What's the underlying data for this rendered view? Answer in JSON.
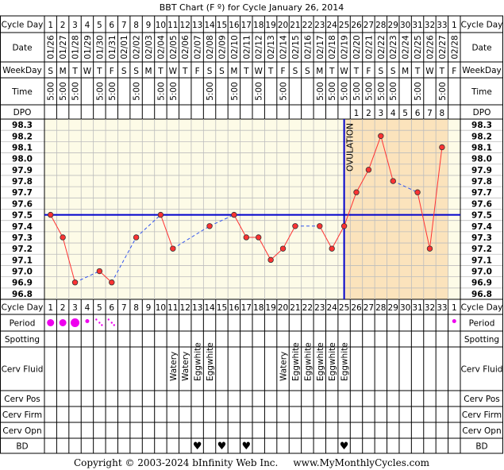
{
  "title": "BBT Chart (F º) for Cycle January 26, 2014",
  "copyright": "Copyright © 2003-2024 bInfinity Web Inc.     www.MyMonthlyCycles.com",
  "row_labels": {
    "cycle_day": "Cycle Day",
    "date": "Date",
    "weekday": "WeekDay",
    "time": "Time",
    "dpo": "DPO",
    "period": "Period",
    "spotting": "Spotting",
    "cerv_fluid": "Cerv Fluid",
    "cerv_pos": "Cerv Pos",
    "cerv_firm": "Cerv Firm",
    "cerv_opn": "Cerv Opn",
    "bd": "BD"
  },
  "ovulation_label": "OVULATION",
  "cycle_days": [
    "1",
    "2",
    "3",
    "4",
    "5",
    "6",
    "7",
    "8",
    "9",
    "10",
    "11",
    "12",
    "13",
    "14",
    "15",
    "16",
    "17",
    "18",
    "19",
    "20",
    "21",
    "22",
    "23",
    "24",
    "25",
    "26",
    "27",
    "28",
    "29",
    "30",
    "31",
    "32",
    "33",
    "1"
  ],
  "dates": [
    "01/26",
    "01/27",
    "01/28",
    "01/29",
    "01/30",
    "01/31",
    "02/01",
    "02/02",
    "02/03",
    "02/04",
    "02/05",
    "02/06",
    "02/07",
    "02/08",
    "02/09",
    "02/10",
    "02/11",
    "02/12",
    "02/13",
    "02/14",
    "02/15",
    "02/16",
    "02/17",
    "02/18",
    "02/19",
    "02/20",
    "02/21",
    "02/22",
    "02/23",
    "02/24",
    "02/25",
    "02/26",
    "02/27",
    "02/28"
  ],
  "weekdays": [
    "S",
    "M",
    "T",
    "W",
    "T",
    "F",
    "S",
    "S",
    "M",
    "T",
    "W",
    "T",
    "F",
    "S",
    "S",
    "M",
    "T",
    "W",
    "T",
    "F",
    "S",
    "S",
    "M",
    "T",
    "W",
    "T",
    "F",
    "S",
    "S",
    "M",
    "T",
    "W",
    "T",
    "F"
  ],
  "times": [
    "5:00",
    "5:00",
    "5:00",
    "",
    "5:00",
    "5:00",
    "",
    "5:00",
    "",
    "5:00",
    "5:00",
    "",
    "",
    "5:00",
    "",
    "5:00",
    "",
    "5:00",
    "",
    "5:00",
    "",
    "",
    "5:00",
    "5:00",
    "5:00",
    "5:00",
    "5:00",
    "5:00",
    "5:00",
    "",
    "5:00",
    "",
    "5:00",
    ""
  ],
  "dpo": [
    "",
    "",
    "",
    "",
    "",
    "",
    "",
    "",
    "",
    "",
    "",
    "",
    "",
    "",
    "",
    "",
    "",
    "",
    "",
    "",
    "",
    "",
    "",
    "",
    "",
    "1",
    "2",
    "3",
    "4",
    "5",
    "6",
    "7",
    "8",
    ""
  ],
  "cerv_fluid": [
    "",
    "",
    "",
    "",
    "",
    "",
    "",
    "",
    "",
    "",
    "Watery",
    "Watery",
    "Eggwhite",
    "Eggwhite",
    "",
    "",
    "",
    "",
    "",
    "Watery",
    "Eggwhite",
    "Eggwhite",
    "Eggwhite",
    "Eggwhite",
    "Eggwhite",
    "",
    "",
    "",
    "",
    "",
    "",
    "",
    "",
    ""
  ],
  "period": [
    "heavy",
    "heavy",
    "heavy",
    "light",
    "spotty",
    "spotty",
    "",
    "",
    "",
    "",
    "",
    "",
    "",
    "",
    "",
    "",
    "",
    "",
    "",
    "",
    "",
    "",
    "",
    "",
    "",
    "",
    "",
    "",
    "",
    "",
    "",
    "",
    "",
    "light"
  ],
  "bd": [
    "",
    "",
    "",
    "",
    "",
    "",
    "",
    "",
    "",
    "",
    "",
    "",
    "♥",
    "",
    "♥",
    "",
    "♥",
    "",
    "",
    "",
    "",
    "",
    "",
    "",
    "♥",
    "",
    "",
    "",
    "",
    "",
    "",
    "",
    "",
    ""
  ],
  "colors": {
    "header_bg": "#ffffff",
    "grid_bg": "#fdfbe7",
    "luteal_bg": "#fbe3bc",
    "grid_line": "#bdbdbd",
    "coverline": "#0000cc",
    "temp_line": "#ff3333",
    "dashed_line": "#3355ee",
    "point_fill": "#ff3333",
    "period": "#ee00ee",
    "bd": "#ee3377"
  },
  "chart_data": {
    "type": "line",
    "title": "BBT Chart (F º) for Cycle January 26, 2014",
    "xlabel": "Cycle Day",
    "ylabel": "",
    "ylim": [
      96.8,
      98.3
    ],
    "yticks": [
      "98.3",
      "98.2",
      "98.1",
      "98.0",
      "97.9",
      "97.8",
      "97.7",
      "97.6",
      "97.5",
      "97.4",
      "97.3",
      "97.2",
      "97.1",
      "97.0",
      "96.9",
      "96.8"
    ],
    "x": [
      1,
      2,
      3,
      4,
      5,
      6,
      7,
      8,
      9,
      10,
      11,
      12,
      13,
      14,
      15,
      16,
      17,
      18,
      19,
      20,
      21,
      22,
      23,
      24,
      25,
      26,
      27,
      28,
      29,
      30,
      31,
      32,
      33,
      34
    ],
    "temps": [
      97.5,
      97.3,
      96.9,
      null,
      97.0,
      96.9,
      null,
      97.3,
      null,
      97.5,
      97.2,
      null,
      null,
      97.4,
      null,
      97.5,
      97.3,
      97.3,
      97.1,
      97.2,
      97.4,
      null,
      97.4,
      97.2,
      97.4,
      97.7,
      97.9,
      98.2,
      97.8,
      null,
      97.7,
      97.2,
      98.1,
      null
    ],
    "coverline": 97.5,
    "ovulation_day": 25,
    "luteal_start_day": 25,
    "luteal_end_day": 33,
    "grid": true
  }
}
